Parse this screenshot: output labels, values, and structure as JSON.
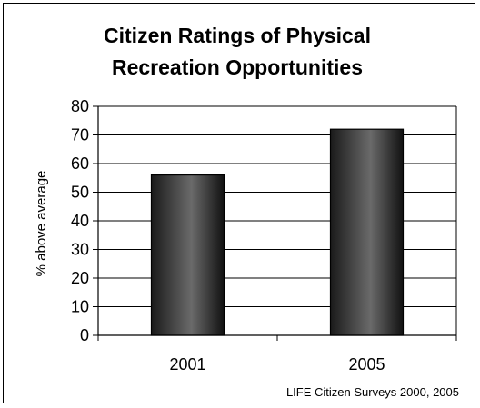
{
  "chart_data": {
    "type": "bar",
    "title_lines": [
      "Citizen Ratings of Physical",
      "Recreation Opportunities"
    ],
    "categories": [
      "2001",
      "2005"
    ],
    "values": [
      56,
      72
    ],
    "xlabel": "",
    "ylabel": "% above average",
    "ylim": [
      0,
      80
    ],
    "yticks": [
      0,
      10,
      20,
      30,
      40,
      50,
      60,
      70,
      80
    ],
    "grid": true,
    "bar_gradient": [
      "#1a1a1a",
      "#6a6a6a",
      "#111111"
    ],
    "source_note": "LIFE Citizen Surveys 2000, 2005"
  }
}
